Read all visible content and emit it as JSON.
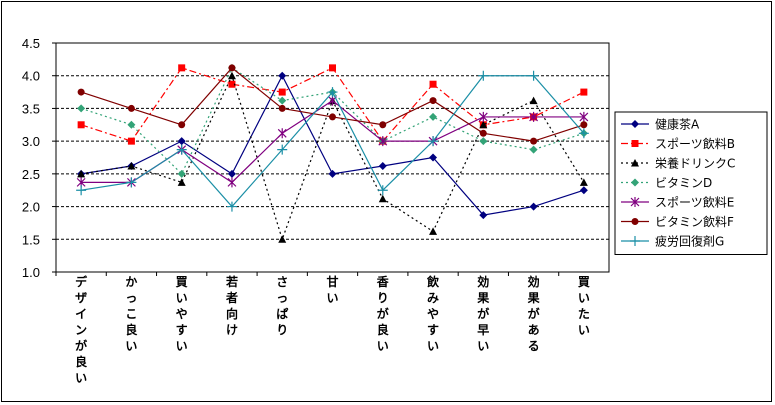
{
  "chart_data": {
    "type": "line",
    "categories": [
      "デザインが良い",
      "かっこ良い",
      "買いやすい",
      "若者向け",
      "さっぱり",
      "甘い",
      "香りが良い",
      "飲みやすい",
      "効果が早い",
      "効果がある",
      "買いたい"
    ],
    "ylim": [
      1.0,
      4.5
    ],
    "yticks": [
      "1.0",
      "1.5",
      "2.0",
      "2.5",
      "3.0",
      "3.5",
      "4.0",
      "4.5"
    ],
    "grid": "horizontal dashed",
    "legend_position": "right",
    "series": [
      {
        "name": "健康茶A",
        "color": "#000080",
        "marker": "diamond",
        "dash": "solid",
        "values": [
          2.5,
          2.62,
          3.0,
          2.5,
          4.0,
          2.5,
          2.62,
          2.75,
          1.87,
          2.0,
          2.25
        ]
      },
      {
        "name": "スポーツ飲料B",
        "color": "#ff0000",
        "marker": "square",
        "dash": "dashdot",
        "values": [
          3.25,
          3.0,
          4.12,
          3.87,
          3.75,
          4.12,
          3.0,
          3.87,
          3.25,
          3.37,
          3.75
        ]
      },
      {
        "name": "栄養ドリンクC",
        "color": "#000000",
        "marker": "triangle",
        "dash": "dotted",
        "values": [
          2.5,
          2.62,
          2.37,
          4.0,
          1.5,
          3.62,
          2.12,
          1.62,
          3.25,
          3.62,
          2.37
        ]
      },
      {
        "name": "ビタミンD",
        "color": "#33a377",
        "marker": "diamond",
        "dash": "dotted",
        "values": [
          3.5,
          3.25,
          2.5,
          4.12,
          3.62,
          3.75,
          3.0,
          3.37,
          3.0,
          2.87,
          3.12
        ]
      },
      {
        "name": "スポーツ飲料E",
        "color": "#800080",
        "marker": "star",
        "dash": "solid",
        "values": [
          2.37,
          2.37,
          2.87,
          2.37,
          3.12,
          3.62,
          3.0,
          3.0,
          3.37,
          3.37,
          3.37
        ]
      },
      {
        "name": "ビタミン飲料F",
        "color": "#800000",
        "marker": "circle",
        "dash": "solid",
        "values": [
          3.75,
          3.5,
          3.25,
          4.12,
          3.5,
          3.37,
          3.25,
          3.62,
          3.12,
          3.0,
          3.25
        ]
      },
      {
        "name": "疲労回復剤G",
        "color": "#1b8fa6",
        "marker": "plus",
        "dash": "solid",
        "values": [
          2.25,
          2.37,
          2.87,
          2.0,
          2.87,
          3.75,
          2.25,
          3.0,
          4.0,
          4.0,
          3.12
        ]
      }
    ]
  }
}
